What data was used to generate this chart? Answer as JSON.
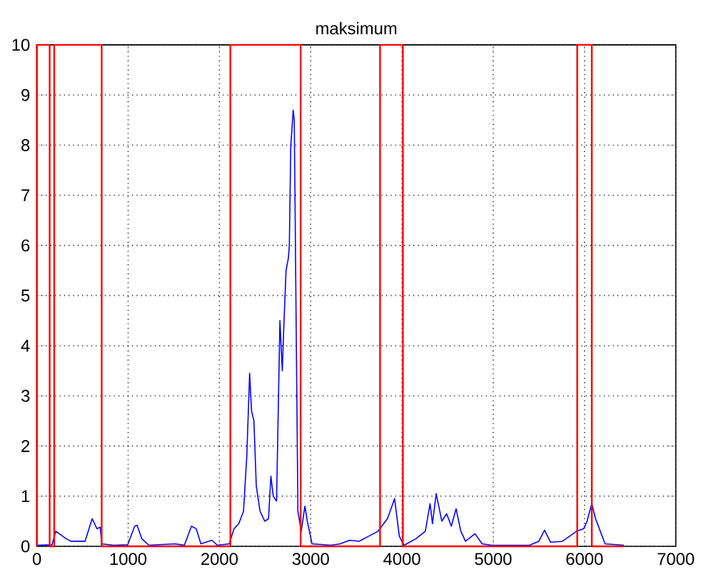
{
  "chart_data": {
    "type": "line",
    "title": "maksimum",
    "xlim": [
      0,
      7000
    ],
    "ylim": [
      0,
      10
    ],
    "xticks": [
      0,
      1000,
      2000,
      3000,
      4000,
      5000,
      6000,
      7000
    ],
    "yticks": [
      0,
      1,
      2,
      3,
      4,
      5,
      6,
      7,
      8,
      9,
      10
    ],
    "grid": true,
    "line_style": "solid",
    "marker": "none",
    "series": [
      {
        "color": "#0000ff",
        "x": [
          0,
          166,
          207,
          321,
          373,
          528,
          606,
          658,
          694,
          710,
          839,
          995,
          1072,
          1098,
          1150,
          1228,
          1513,
          1616,
          1694,
          1746,
          1797,
          1917,
          1979,
          2108,
          2160,
          2212,
          2264,
          2300,
          2331,
          2352,
          2378,
          2404,
          2445,
          2497,
          2538,
          2564,
          2590,
          2626,
          2663,
          2689,
          2704,
          2730,
          2756,
          2766,
          2782,
          2792,
          2808,
          2820,
          2860,
          2896,
          2937,
          2963,
          3015,
          3222,
          3323,
          3427,
          3531,
          3634,
          3738,
          3841,
          3919,
          3971,
          4023,
          4153,
          4256,
          4308,
          4334,
          4375,
          4437,
          4489,
          4541,
          4593,
          4645,
          4696,
          4800,
          4878,
          4981,
          5396,
          5500,
          5562,
          5629,
          5758,
          5914,
          5991,
          6028,
          6080,
          6121,
          6173,
          6225,
          6432
        ],
        "values": [
          0.02,
          0.03,
          0.3,
          0.15,
          0.1,
          0.1,
          0.55,
          0.35,
          0.38,
          0.05,
          0.02,
          0.03,
          0.4,
          0.42,
          0.15,
          0.02,
          0.05,
          0.02,
          0.4,
          0.35,
          0.05,
          0.12,
          0.02,
          0.05,
          0.35,
          0.45,
          0.7,
          1.8,
          3.45,
          2.7,
          2.5,
          1.2,
          0.7,
          0.5,
          0.55,
          1.4,
          1.0,
          0.9,
          4.5,
          3.5,
          4.3,
          5.5,
          5.75,
          6.0,
          8.0,
          8.25,
          8.7,
          8.5,
          0.7,
          0.3,
          0.8,
          0.5,
          0.05,
          0.02,
          0.05,
          0.12,
          0.1,
          0.2,
          0.3,
          0.55,
          0.95,
          0.2,
          0.02,
          0.15,
          0.3,
          0.85,
          0.45,
          1.05,
          0.5,
          0.65,
          0.4,
          0.75,
          0.3,
          0.1,
          0.25,
          0.05,
          0.02,
          0.02,
          0.1,
          0.32,
          0.08,
          0.1,
          0.3,
          0.35,
          0.5,
          0.85,
          0.55,
          0.3,
          0.05,
          0.02
        ]
      },
      {
        "color": "#ff0000",
        "x": [
          0,
          0,
          140,
          140,
          190,
          190,
          710,
          710,
          2120,
          2120,
          2890,
          2890,
          3760,
          3760,
          4010,
          4010,
          5920,
          5920,
          6080,
          6080,
          6430
        ],
        "values": [
          0,
          10,
          10,
          0,
          0,
          10,
          10,
          0,
          0,
          10,
          10,
          0,
          0,
          10,
          10,
          0,
          0,
          10,
          10,
          0,
          0
        ]
      }
    ]
  }
}
